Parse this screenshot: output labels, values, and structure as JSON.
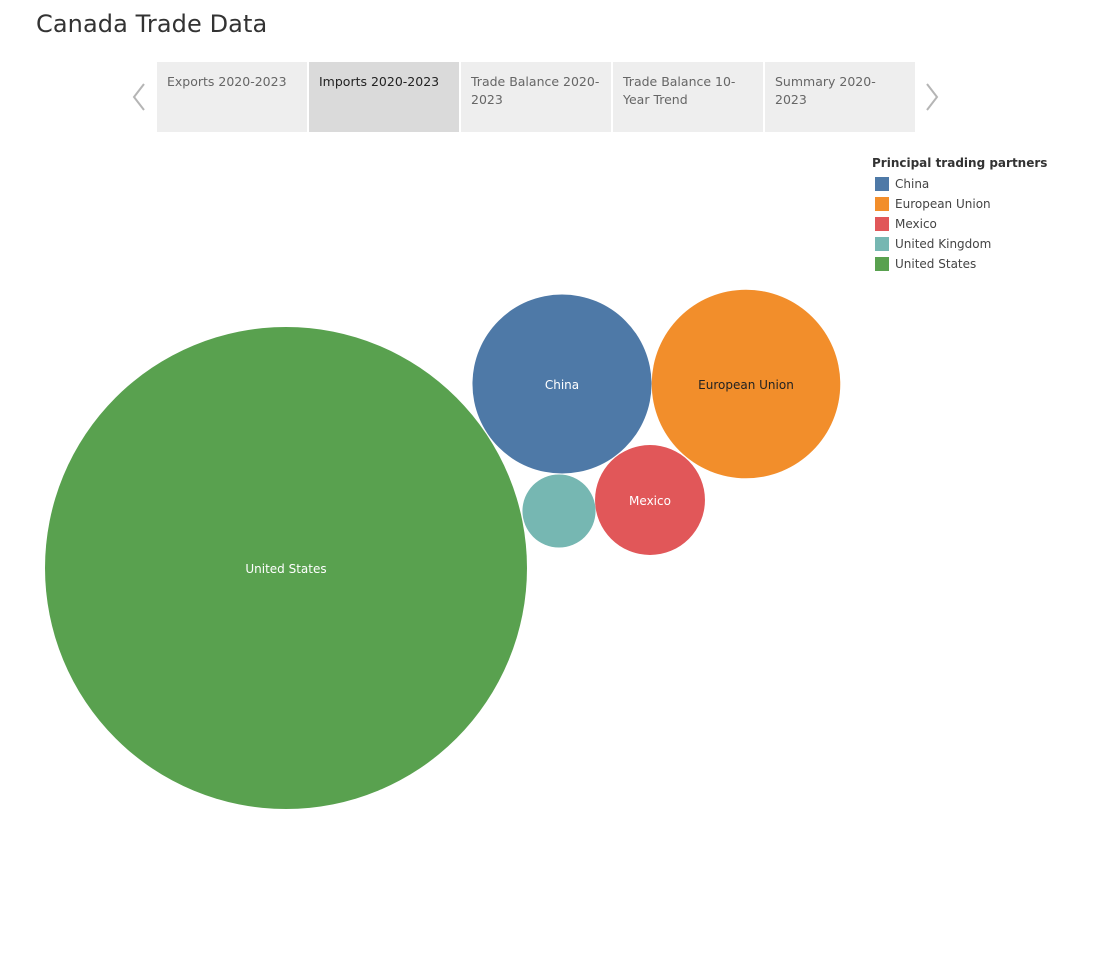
{
  "page": {
    "title": "Canada Trade Data"
  },
  "tabs": [
    {
      "label": "Exports 2020-2023",
      "active": false
    },
    {
      "label": "Imports 2020-2023",
      "active": true
    },
    {
      "label": "Trade Balance 2020-2023",
      "active": false
    },
    {
      "label": "Trade Balance 10-Year Trend",
      "active": false
    },
    {
      "label": "Summary 2020-2023",
      "active": false
    }
  ],
  "nav": {
    "prev_icon": "chevron-left-icon",
    "next_icon": "chevron-right-icon"
  },
  "legend": {
    "title": "Principal trading partners",
    "items": [
      {
        "label": "China",
        "color": "#4e79a7"
      },
      {
        "label": "European Union",
        "color": "#f28e2b"
      },
      {
        "label": "Mexico",
        "color": "#e15759"
      },
      {
        "label": "United Kingdom",
        "color": "#76b7b2"
      },
      {
        "label": "United States",
        "color": "#59a14f"
      }
    ]
  },
  "chart_data": {
    "type": "bubble",
    "title": "",
    "series": [
      {
        "name": "United States",
        "value": 100,
        "color": "#59a14f",
        "label": "United States",
        "label_color": "#ffffff"
      },
      {
        "name": "China",
        "value": 13.8,
        "color": "#4e79a7",
        "label": "China",
        "label_color": "#ffffff"
      },
      {
        "name": "European Union",
        "value": 15.3,
        "color": "#f28e2b",
        "label": "European Union",
        "label_color": "#222222"
      },
      {
        "name": "Mexico",
        "value": 5.2,
        "color": "#e15759",
        "label": "Mexico",
        "label_color": "#ffffff"
      },
      {
        "name": "United Kingdom",
        "value": 2.3,
        "color": "#76b7b2",
        "label": "",
        "label_color": "#ffffff"
      }
    ]
  }
}
